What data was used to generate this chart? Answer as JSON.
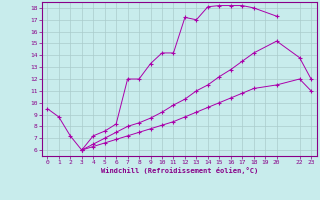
{
  "xlabel": "Windchill (Refroidissement éolien,°C)",
  "bg_color": "#c8ecec",
  "line_color": "#aa00aa",
  "grid_color": "#aacccc",
  "xlim": [
    -0.5,
    23.5
  ],
  "ylim": [
    5.5,
    18.5
  ],
  "series1_x": [
    0,
    1,
    2,
    3,
    4,
    5,
    6,
    7,
    8,
    9,
    10,
    11,
    12,
    13,
    14,
    15,
    16,
    17,
    18,
    20
  ],
  "series1_y": [
    9.5,
    8.8,
    7.2,
    6.0,
    7.2,
    7.6,
    8.2,
    12.0,
    12.0,
    13.3,
    14.2,
    14.2,
    17.2,
    17.0,
    18.1,
    18.2,
    18.2,
    18.2,
    18.0,
    17.3
  ],
  "series2_x": [
    3,
    4,
    5,
    6,
    7,
    8,
    9,
    10,
    11,
    12,
    13,
    14,
    15,
    16,
    17,
    18,
    20,
    22,
    23
  ],
  "series2_y": [
    6.0,
    6.5,
    7.0,
    7.5,
    8.0,
    8.3,
    8.7,
    9.2,
    9.8,
    10.3,
    11.0,
    11.5,
    12.2,
    12.8,
    13.5,
    14.2,
    15.2,
    13.8,
    12.0
  ],
  "series3_x": [
    3,
    4,
    5,
    6,
    7,
    8,
    9,
    10,
    11,
    12,
    13,
    14,
    15,
    16,
    17,
    18,
    20,
    22,
    23
  ],
  "series3_y": [
    6.0,
    6.3,
    6.6,
    6.9,
    7.2,
    7.5,
    7.8,
    8.1,
    8.4,
    8.8,
    9.2,
    9.6,
    10.0,
    10.4,
    10.8,
    11.2,
    11.5,
    12.0,
    11.0
  ],
  "xticks": [
    0,
    1,
    2,
    3,
    4,
    5,
    6,
    7,
    8,
    9,
    10,
    11,
    12,
    13,
    14,
    15,
    16,
    17,
    18,
    19,
    20,
    22,
    23
  ],
  "xlabels": [
    "0",
    "1",
    "2",
    "3",
    "4",
    "5",
    "6",
    "7",
    "8",
    "9",
    "10",
    "11",
    "12",
    "13",
    "14",
    "15",
    "16",
    "17",
    "18",
    "19",
    "20",
    "22",
    "23"
  ],
  "yticks": [
    6,
    7,
    8,
    9,
    10,
    11,
    12,
    13,
    14,
    15,
    16,
    17,
    18
  ],
  "ylabels": [
    "6",
    "7",
    "8",
    "9",
    "10",
    "11",
    "12",
    "13",
    "14",
    "15",
    "16",
    "17",
    "18"
  ]
}
